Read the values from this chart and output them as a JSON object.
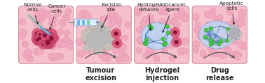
{
  "panel_bg": "#f5bfcc",
  "tissue_cell_color": "#f0a8be",
  "tissue_cell_ec": "#e090aa",
  "cancer_cell_color": "#d8507a",
  "cancer_cell_dark": "#8a1535",
  "cancer_cell_ec": "#b03060",
  "hydrogel_fill": "#b8d8f8",
  "hydrogel_ec": "#6699cc",
  "hydrogel_line": "#4477bb",
  "drug_color": "#44cc44",
  "drug_ec": "#229922",
  "apoptotic_color": "#b0b0b8",
  "apoptotic_ec": "#888898",
  "gray_cavity": "#b8b8b8",
  "gray_cavity_ec": "#909090",
  "arrow_color": "#444444",
  "annot_color": "#222222",
  "panel_labels": [
    "Tumour\nexcision",
    "Hydrogel\ninjection",
    "Drug\nrelease"
  ],
  "title_fontsize": 7,
  "annot_fontsize": 5.2,
  "white": "#ffffff"
}
